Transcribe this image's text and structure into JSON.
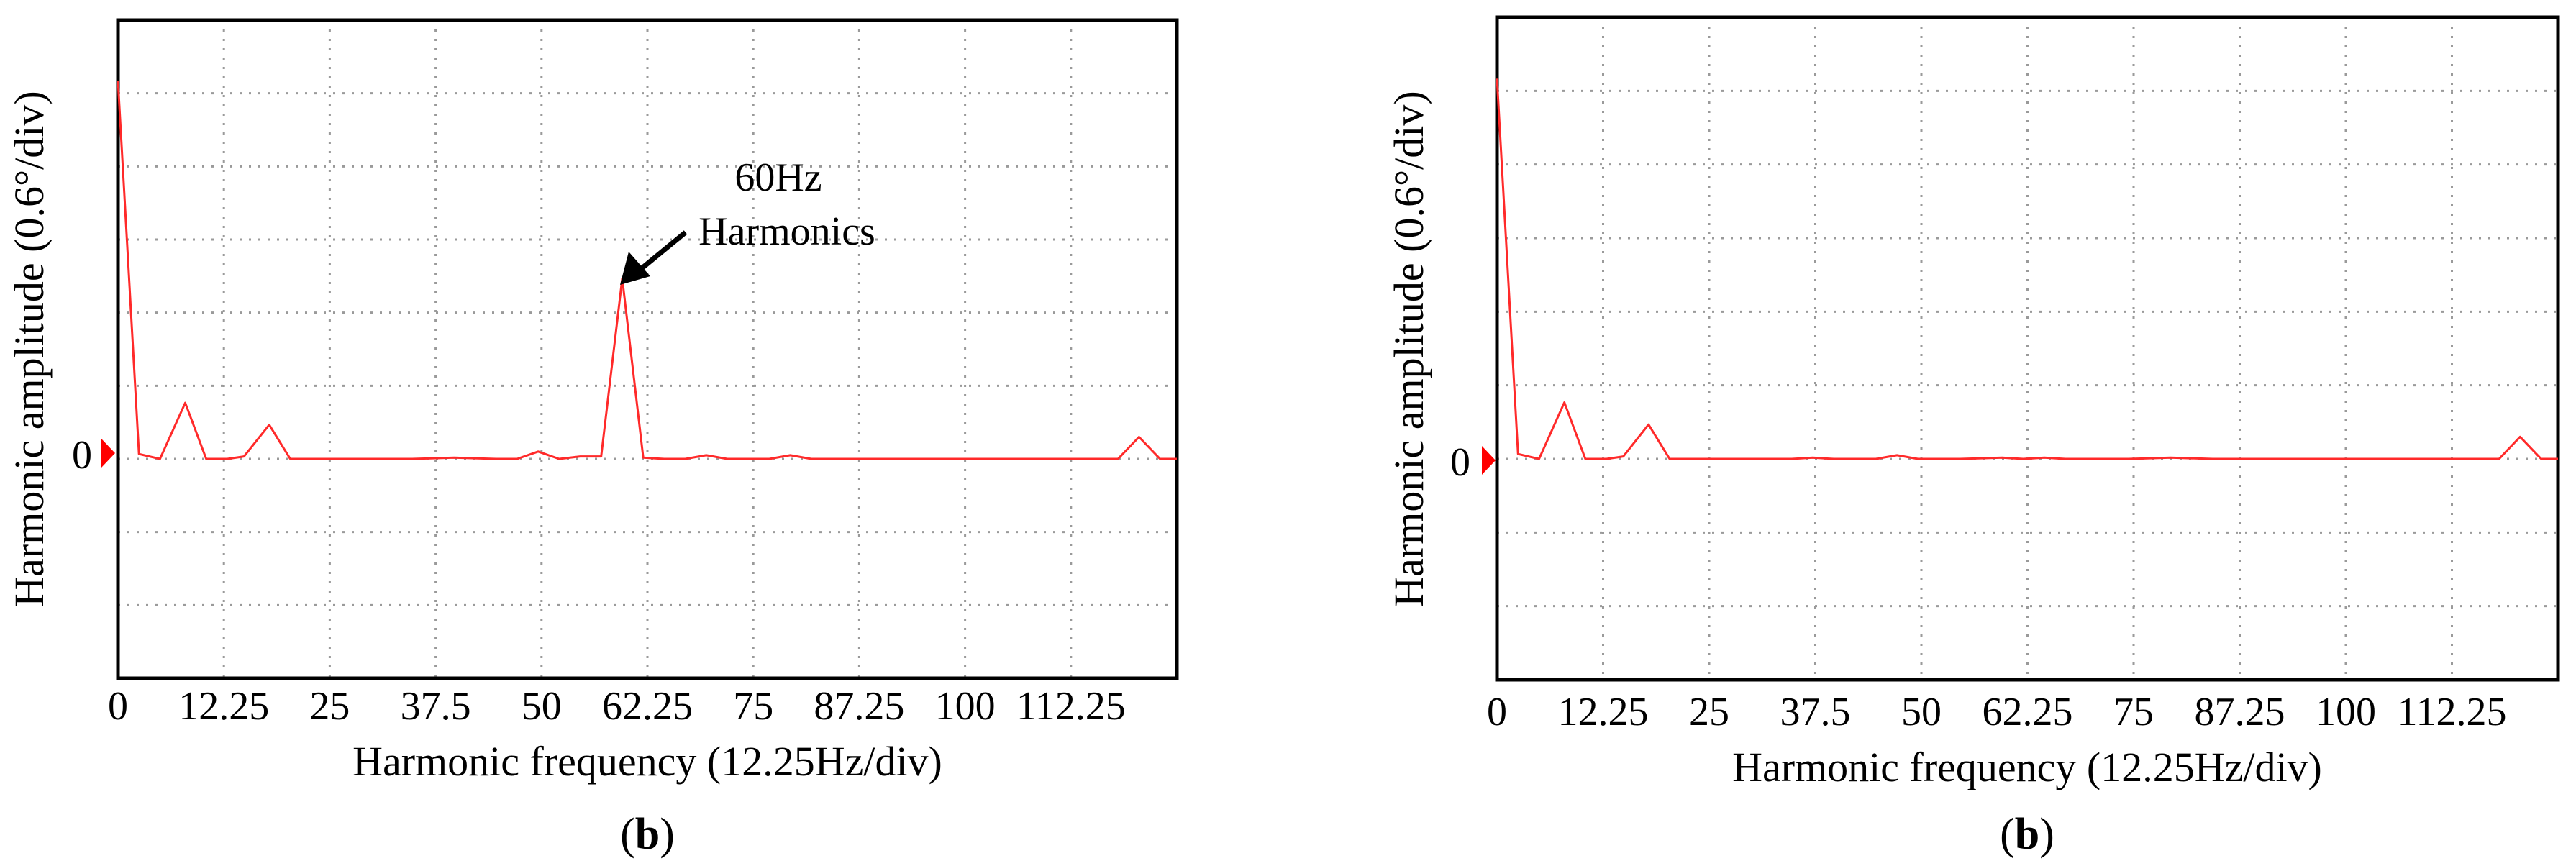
{
  "chart_data": [
    {
      "type": "line",
      "panel_label": "b",
      "xlabel": "Harmonic frequency (12.25Hz/div)",
      "ylabel": "Harmonic amplitude (0.6°/div)",
      "zero_marker_label": "0",
      "x_tick_labels": [
        "0",
        "12.25",
        "25",
        "37.5",
        "50",
        "62.25",
        "75",
        "87.25",
        "100",
        "112.25"
      ],
      "xlim": [
        0,
        126
      ],
      "ylim": [
        -1.8,
        3.6
      ],
      "grid": true,
      "annotation": {
        "lines": [
          "60Hz",
          "Harmonics"
        ],
        "points_to_x": 60
      },
      "series": [
        {
          "color": "#ff2a2a",
          "x": [
            0,
            2.5,
            5,
            8,
            10.5,
            13,
            15,
            18,
            20.5,
            23,
            25,
            30,
            35,
            40,
            45,
            47.5,
            50,
            52.5,
            55,
            57.5,
            60,
            62.5,
            65,
            67.5,
            70,
            72.5,
            75,
            77.5,
            80,
            82.5,
            85,
            90,
            95,
            100,
            105,
            110,
            115,
            119,
            121.5,
            124,
            126
          ],
          "values": [
            3.1,
            0.04,
            0.0,
            0.46,
            0.0,
            0.0,
            0.02,
            0.28,
            0.0,
            0.0,
            0.0,
            0.0,
            0.0,
            0.01,
            0.0,
            0.0,
            0.06,
            0.0,
            0.02,
            0.02,
            1.48,
            0.01,
            0.0,
            0.0,
            0.03,
            0.0,
            0.0,
            0.0,
            0.03,
            0.0,
            0.0,
            0.0,
            0.0,
            0.0,
            0.0,
            0.0,
            0.0,
            0.0,
            0.18,
            0.0,
            0.0
          ]
        }
      ]
    },
    {
      "type": "line",
      "panel_label": "b",
      "xlabel": "Harmonic frequency (12.25Hz/div)",
      "ylabel": "Harmonic amplitude (0.6°/div)",
      "zero_marker_label": "0",
      "x_tick_labels": [
        "0",
        "12.25",
        "25",
        "37.5",
        "50",
        "62.25",
        "75",
        "87.25",
        "100",
        "112.25"
      ],
      "xlim": [
        0,
        126
      ],
      "ylim": [
        -1.8,
        3.6
      ],
      "grid": true,
      "series": [
        {
          "color": "#ff2a2a",
          "x": [
            0,
            2.5,
            5,
            8,
            10.5,
            13,
            15,
            18,
            20.5,
            23,
            25,
            30,
            35,
            37.5,
            40,
            45,
            47.5,
            50,
            55,
            60,
            62.5,
            65,
            67.5,
            70,
            75,
            80,
            85,
            90,
            95,
            100,
            105,
            110,
            115,
            119,
            121.5,
            124,
            126
          ],
          "values": [
            3.1,
            0.04,
            0.0,
            0.46,
            0.0,
            0.0,
            0.02,
            0.28,
            0.0,
            0.0,
            0.0,
            0.0,
            0.0,
            0.01,
            0.0,
            0.0,
            0.03,
            0.0,
            0.0,
            0.01,
            0.0,
            0.01,
            0.0,
            0.0,
            0.0,
            0.01,
            0.0,
            0.0,
            0.0,
            0.0,
            0.0,
            0.0,
            0.0,
            0.0,
            0.18,
            0.0,
            0.0
          ]
        }
      ]
    }
  ]
}
